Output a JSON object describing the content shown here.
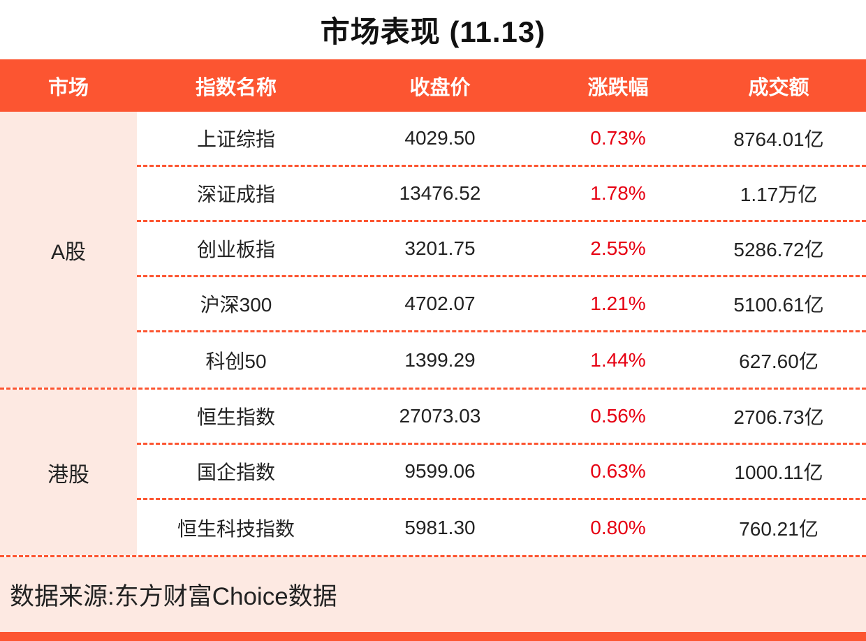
{
  "title": "市场表现 (11.13)",
  "table": {
    "headers": [
      "市场",
      "指数名称",
      "收盘价",
      "涨跌幅",
      "成交额"
    ],
    "groups": [
      {
        "market": "A股",
        "rows": [
          {
            "name": "上证综指",
            "close": "4029.50",
            "change": "0.73%",
            "turnover": "8764.01亿"
          },
          {
            "name": "深证成指",
            "close": "13476.52",
            "change": "1.78%",
            "turnover": "1.17万亿"
          },
          {
            "name": "创业板指",
            "close": "3201.75",
            "change": "2.55%",
            "turnover": "5286.72亿"
          },
          {
            "name": "沪深300",
            "close": "4702.07",
            "change": "1.21%",
            "turnover": "5100.61亿"
          },
          {
            "name": "科创50",
            "close": "1399.29",
            "change": "1.44%",
            "turnover": "627.60亿"
          }
        ]
      },
      {
        "market": "港股",
        "rows": [
          {
            "name": "恒生指数",
            "close": "27073.03",
            "change": "0.56%",
            "turnover": "2706.73亿"
          },
          {
            "name": "国企指数",
            "close": "9599.06",
            "change": "0.63%",
            "turnover": "1000.11亿"
          },
          {
            "name": "恒生科技指数",
            "close": "5981.30",
            "change": "0.80%",
            "turnover": "760.21亿"
          }
        ]
      }
    ]
  },
  "footer": {
    "source": "数据来源:东方财富Choice数据"
  },
  "colors": {
    "accent": "#FC5531",
    "light_pink": "#FDE9E2",
    "red": "#E60012",
    "text": "#222222"
  },
  "chart_data": {
    "type": "table",
    "title": "市场表现 (11.13)",
    "columns": [
      "市场",
      "指数名称",
      "收盘价",
      "涨跌幅",
      "成交额"
    ],
    "rows": [
      [
        "A股",
        "上证综指",
        4029.5,
        "0.73%",
        "8764.01亿"
      ],
      [
        "A股",
        "深证成指",
        13476.52,
        "1.78%",
        "1.17万亿"
      ],
      [
        "A股",
        "创业板指",
        3201.75,
        "2.55%",
        "5286.72亿"
      ],
      [
        "A股",
        "沪深300",
        4702.07,
        "1.21%",
        "5100.61亿"
      ],
      [
        "A股",
        "科创50",
        1399.29,
        "1.44%",
        "627.60亿"
      ],
      [
        "港股",
        "恒生指数",
        27073.03,
        "0.56%",
        "2706.73亿"
      ],
      [
        "港股",
        "国企指数",
        9599.06,
        "0.63%",
        "1000.11亿"
      ],
      [
        "港股",
        "恒生科技指数",
        5981.3,
        "0.80%",
        "760.21亿"
      ]
    ],
    "change_pct": [
      0.73,
      1.78,
      2.55,
      1.21,
      1.44,
      0.56,
      0.63,
      0.8
    ],
    "source": "数据来源:东方财富Choice数据",
    "layout": "grouped rows by market; dashed row separators; all changes positive (red)"
  }
}
